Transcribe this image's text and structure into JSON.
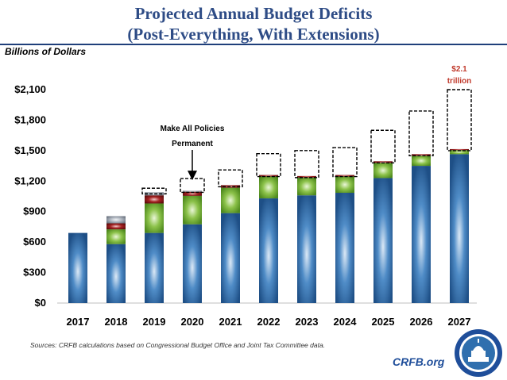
{
  "title_line1": "Projected Annual Budget Deficits",
  "title_line2": "(Post-Everything, With Extensions)",
  "source": "Sources: CRFB calculations based on Congressional Budget Office and Joint Tax Committee data.",
  "brand": "CRFB.org",
  "seal_icon": "capitol-seal-icon",
  "colors": {
    "title": "#2e4c86",
    "base": "#2f6fae",
    "green": "#7ab73c",
    "red": "#8b1a1a",
    "grey": "#9aa2ad",
    "outline": "#000000",
    "annotation_red": "#c0392b"
  },
  "chart_data": {
    "type": "bar",
    "stacked": true,
    "ylabel": "Billions of Dollars",
    "xlabel": "",
    "ylim": [
      0,
      2100
    ],
    "yticks": [
      "$0",
      "$300",
      "$600",
      "$900",
      "$1,200",
      "$1,500",
      "$1,800",
      "$2,100"
    ],
    "ytick_values": [
      0,
      300,
      600,
      900,
      1200,
      1500,
      1800,
      2100
    ],
    "categories": [
      "2017",
      "2018",
      "2019",
      "2020",
      "2021",
      "2022",
      "2023",
      "2024",
      "2025",
      "2026",
      "2027"
    ],
    "series": [
      {
        "key": "base",
        "values": [
          690,
          580,
          690,
          775,
          885,
          1030,
          1060,
          1085,
          1230,
          1350,
          1465
        ]
      },
      {
        "key": "green",
        "values": [
          0,
          145,
          290,
          280,
          250,
          215,
          175,
          160,
          150,
          100,
          40
        ]
      },
      {
        "key": "red",
        "values": [
          0,
          60,
          80,
          40,
          25,
          15,
          15,
          15,
          15,
          15,
          10
        ]
      },
      {
        "key": "grey",
        "values": [
          0,
          70,
          30,
          10,
          0,
          0,
          0,
          0,
          0,
          0,
          0
        ]
      }
    ],
    "outline_totals": [
      null,
      null,
      1130,
      1225,
      1310,
      1470,
      1500,
      1530,
      1700,
      1890,
      2100
    ],
    "grid": false,
    "legend": "none",
    "annotations": [
      {
        "text": "Make All Policies",
        "text2": "Permanent",
        "target": "2020"
      },
      {
        "text": "$2.1",
        "text2": "trillion",
        "target": "2027"
      }
    ]
  }
}
